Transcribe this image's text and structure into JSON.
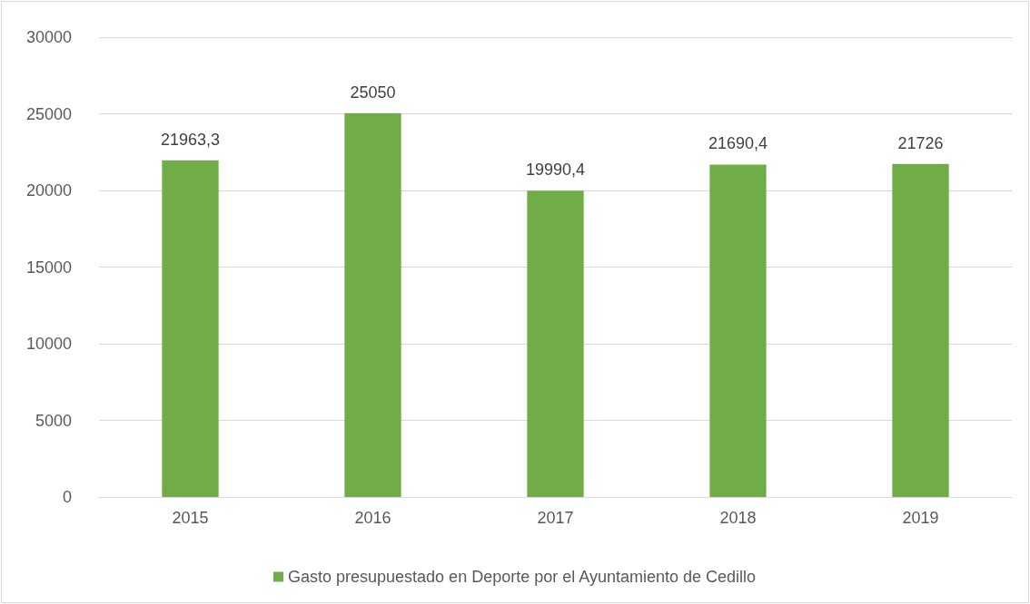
{
  "chart_data": {
    "type": "bar",
    "categories": [
      "2015",
      "2016",
      "2017",
      "2018",
      "2019"
    ],
    "series": [
      {
        "name": "Gasto presupuestado en Deporte por el Ayuntamiento de Cedillo",
        "color": "#70ad47",
        "values": [
          21963.3,
          25050,
          19990.4,
          21690.4,
          21726
        ],
        "value_labels": [
          "21963,3",
          "25050",
          "19990,4",
          "21690,4",
          "21726"
        ]
      }
    ],
    "ylim": [
      0,
      30000
    ],
    "yticks": [
      0,
      5000,
      10000,
      15000,
      20000,
      25000,
      30000
    ],
    "grid": "y",
    "legend": "bottom"
  }
}
